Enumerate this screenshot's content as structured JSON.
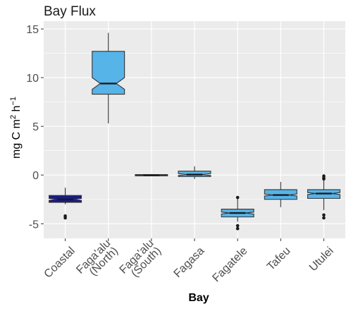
{
  "chart_data": {
    "type": "boxplot",
    "title": "Bay Flux",
    "xlabel": "Bay",
    "ylabel": {
      "prefix": "mg  C  m",
      "sup1": "2",
      "middle": "  h",
      "sup2": "−1"
    },
    "ylim": [
      -6.5,
      15.8
    ],
    "yticks": [
      -5,
      0,
      5,
      10,
      15
    ],
    "ytick_labels": [
      "-5",
      "0",
      "5",
      "10",
      "15"
    ],
    "grid": true,
    "panel_background": "#ebebeb",
    "grid_color": "#ffffff",
    "categories": [
      {
        "label_lines": [
          "Coastal"
        ],
        "fill": "#1a1a8c",
        "min": -3.0,
        "q1": -2.8,
        "median": -2.5,
        "q3": -2.1,
        "max": -1.3,
        "notch_lo": -2.6,
        "notch_hi": -2.4,
        "outliers": [
          -4.2,
          -4.4
        ]
      },
      {
        "label_lines": [
          "Faga'alu",
          "(North)"
        ],
        "fill": "#56b4e9",
        "min": 5.3,
        "q1": 8.3,
        "median": 9.4,
        "q3": 12.7,
        "max": 14.6,
        "notch_lo": 8.8,
        "notch_hi": 10.0,
        "outliers": []
      },
      {
        "label_lines": [
          "Faga'alu",
          "(South)"
        ],
        "fill": "#56b4e9",
        "min": -0.1,
        "q1": -0.08,
        "median": -0.02,
        "q3": 0.05,
        "max": 0.1,
        "notch_lo": -0.04,
        "notch_hi": 0.0,
        "outliers": []
      },
      {
        "label_lines": [
          "Fagasa"
        ],
        "fill": "#56b4e9",
        "min": -0.4,
        "q1": -0.15,
        "median": 0.05,
        "q3": 0.4,
        "max": 0.9,
        "notch_lo": -0.05,
        "notch_hi": 0.15,
        "outliers": []
      },
      {
        "label_lines": [
          "Fagatele"
        ],
        "fill": "#56b4e9",
        "min": -4.8,
        "q1": -4.3,
        "median": -3.9,
        "q3": -3.5,
        "max": -2.4,
        "notch_lo": -4.0,
        "notch_hi": -3.8,
        "outliers": [
          -2.3,
          -5.2,
          -5.5
        ]
      },
      {
        "label_lines": [
          "Tafeu"
        ],
        "fill": "#56b4e9",
        "min": -3.3,
        "q1": -2.5,
        "median": -2.05,
        "q3": -1.5,
        "max": -0.7,
        "notch_lo": -2.15,
        "notch_hi": -1.95,
        "outliers": []
      },
      {
        "label_lines": [
          "Utulei"
        ],
        "fill": "#56b4e9",
        "min": -3.6,
        "q1": -2.4,
        "median": -1.9,
        "q3": -1.5,
        "max": -0.3,
        "notch_lo": -2.0,
        "notch_hi": -1.8,
        "outliers": [
          -0.1,
          -0.3,
          -0.4,
          -4.1,
          -4.4
        ]
      }
    ]
  }
}
